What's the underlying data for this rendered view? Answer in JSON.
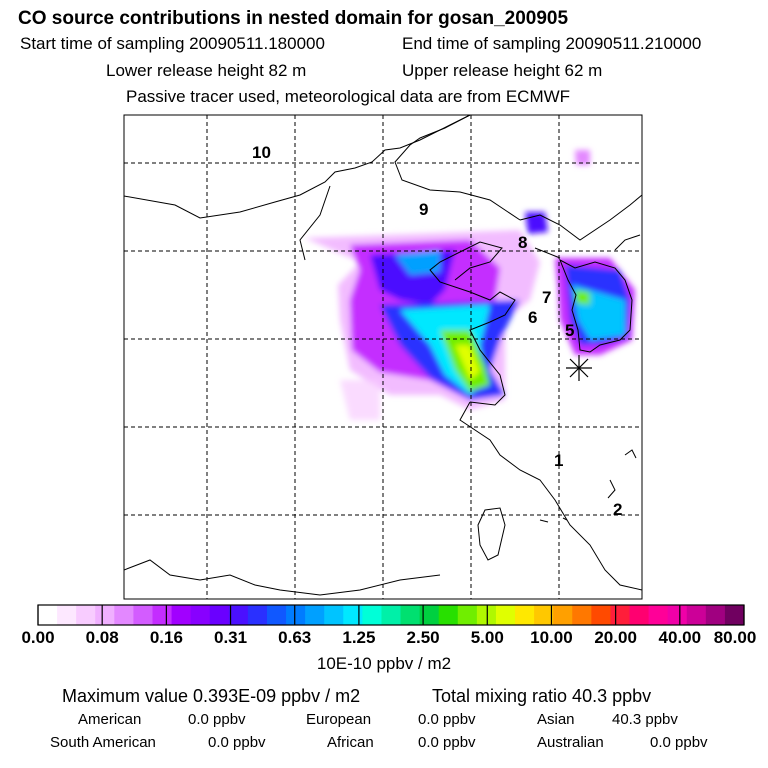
{
  "header": {
    "title": "CO  source contributions in nested domain for gosan_200905",
    "start_time": "Start time of sampling 20090511.180000",
    "end_time": "End time of sampling 20090511.210000",
    "lower_height": "Lower release height   82 m",
    "upper_height": "Upper release height   62 m",
    "note": "Passive tracer used, meteorological data are from ECMWF"
  },
  "map": {
    "region_labels": [
      "10",
      "9",
      "8",
      "7",
      "6",
      "5",
      "1",
      "2"
    ],
    "receptor_icon": "asterisk-icon"
  },
  "colorbar": {
    "tick_labels": [
      "0.00",
      "0.08",
      "0.16",
      "0.31",
      "0.63",
      "1.25",
      "2.50",
      "5.00",
      "10.00",
      "20.00",
      "40.00",
      "80.00"
    ],
    "units": "10E-10 ppbv / m2",
    "colors": [
      "#ffffff",
      "#fde8ff",
      "#f8ccff",
      "#f0b0ff",
      "#e388ff",
      "#d35cff",
      "#c42dff",
      "#a100ff",
      "#8800ff",
      "#6a00ff",
      "#4b10ff",
      "#2a30ff",
      "#1058ff",
      "#007cff",
      "#00a0ff",
      "#00c4ff",
      "#00e8ff",
      "#00ffd8",
      "#00f0a8",
      "#00e070",
      "#00d040",
      "#28e000",
      "#70ee00",
      "#b0f800",
      "#e0ff00",
      "#ffe800",
      "#ffc800",
      "#ffa000",
      "#ff7800",
      "#ff4a00",
      "#ff1e3a",
      "#ff0070",
      "#ff0098",
      "#f000a8",
      "#cc0098",
      "#a00080",
      "#700060"
    ]
  },
  "footer": {
    "max_value": "Maximum value  0.393E-09 ppbv / m2",
    "total": "Total mixing ratio       40.3 ppbv",
    "regions": [
      {
        "name": "American",
        "value": "0.0 ppbv"
      },
      {
        "name": "European",
        "value": "0.0 ppbv"
      },
      {
        "name": "Asian",
        "value": "40.3 ppbv"
      },
      {
        "name": "South American",
        "value": "0.0 ppbv"
      },
      {
        "name": "African",
        "value": "0.0 ppbv"
      },
      {
        "name": "Australian",
        "value": "0.0 ppbv"
      }
    ]
  }
}
